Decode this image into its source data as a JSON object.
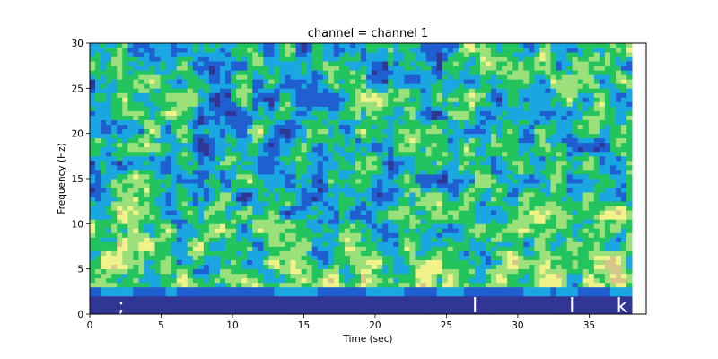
{
  "chart_data": {
    "type": "heatmap",
    "title": "channel = channel 1",
    "xlabel": "Time (sec)",
    "ylabel": "Frequency (Hz)",
    "xlim": [
      0,
      39
    ],
    "ylim": [
      0,
      30
    ],
    "data_x_extent": [
      0,
      38
    ],
    "x_ticks": [
      0,
      5,
      10,
      15,
      20,
      25,
      30,
      35
    ],
    "x_tick_labels": [
      "0",
      "5",
      "10",
      "15",
      "20",
      "25",
      "30",
      "35"
    ],
    "y_ticks": [
      0,
      5,
      10,
      15,
      20,
      25,
      30
    ],
    "y_tick_labels": [
      "0",
      "5",
      "10",
      "15",
      "20",
      "25",
      "30"
    ],
    "grid": false,
    "colormap": [
      "#313695",
      "#1f5fd0",
      "#1aa6e0",
      "#23c45e",
      "#9be07a",
      "#f2f28a",
      "#d8c58a"
    ],
    "low_frequency_band_hz": [
      0,
      2
    ],
    "event_markers": [
      {
        "time": 2.2,
        "label": ";"
      },
      {
        "time": 27.0,
        "label": "l"
      },
      {
        "time": 33.8,
        "label": "l"
      },
      {
        "time": 37.3,
        "label": "k"
      }
    ]
  }
}
